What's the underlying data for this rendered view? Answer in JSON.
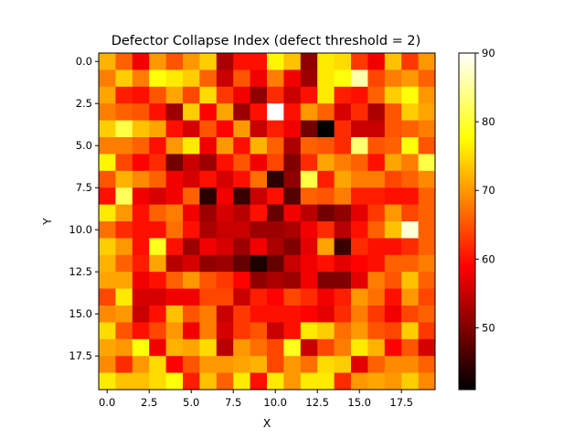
{
  "chart_data": {
    "type": "heatmap",
    "title": "Defector Collapse Index (defect threshold = 2)",
    "xlabel": "X",
    "ylabel": "Y",
    "colormap": "hot",
    "vmin": 41,
    "vmax": 90,
    "xlim": [
      -0.5,
      19.5
    ],
    "ylim": [
      19.5,
      -0.5
    ],
    "xticks": [
      0,
      2.5,
      5,
      7.5,
      10,
      12.5,
      15,
      17.5
    ],
    "xtick_labels": [
      "0.0",
      "2.5",
      "5.0",
      "7.5",
      "10.0",
      "12.5",
      "15.0",
      "17.5"
    ],
    "yticks": [
      0,
      2.5,
      5,
      7.5,
      10,
      12.5,
      15,
      17.5
    ],
    "ytick_labels": [
      "0.0",
      "2.5",
      "5.0",
      "7.5",
      "10.0",
      "12.5",
      "15.0",
      "17.5"
    ],
    "colorbar_ticks": [
      50,
      60,
      70,
      80,
      90
    ],
    "colorbar_labels": [
      "50",
      "60",
      "70",
      "80",
      "90"
    ],
    "grid": false,
    "values": [
      [
        72,
        66,
        58,
        70,
        65,
        70,
        74,
        53,
        60,
        60,
        77,
        73,
        51,
        76,
        75,
        63,
        58,
        73,
        63,
        70
      ],
      [
        68,
        74,
        68,
        78,
        76,
        74,
        66,
        55,
        65,
        58,
        68,
        58,
        52,
        76,
        78,
        86,
        64,
        68,
        70,
        66
      ],
      [
        71,
        61,
        60,
        65,
        71,
        64,
        75,
        63,
        58,
        51,
        62,
        55,
        60,
        76,
        61,
        60,
        66,
        74,
        78,
        70
      ],
      [
        68,
        66,
        65,
        60,
        52,
        74,
        59,
        71,
        52,
        60,
        90,
        60,
        70,
        66,
        56,
        62,
        53,
        65,
        74,
        71
      ],
      [
        74,
        81,
        73,
        71,
        60,
        56,
        65,
        59,
        70,
        55,
        61,
        58,
        49,
        41,
        62,
        55,
        55,
        65,
        66,
        68
      ],
      [
        68,
        68,
        66,
        60,
        70,
        76,
        58,
        70,
        60,
        72,
        66,
        53,
        66,
        65,
        62,
        83,
        65,
        66,
        78,
        65
      ],
      [
        77,
        64,
        59,
        62,
        49,
        55,
        52,
        60,
        65,
        58,
        64,
        50,
        62,
        71,
        68,
        66,
        60,
        71,
        68,
        81
      ],
      [
        65,
        72,
        69,
        66,
        58,
        56,
        60,
        56,
        60,
        67,
        44,
        51,
        81,
        61,
        71,
        68,
        68,
        64,
        66,
        69
      ],
      [
        60,
        82,
        58,
        56,
        58,
        66,
        44,
        58,
        45,
        55,
        60,
        47,
        66,
        65,
        68,
        61,
        61,
        60,
        60,
        66
      ],
      [
        76,
        70,
        60,
        66,
        68,
        58,
        52,
        56,
        54,
        60,
        48,
        58,
        54,
        49,
        51,
        57,
        63,
        70,
        64,
        66
      ],
      [
        67,
        62,
        60,
        60,
        67,
        60,
        53,
        55,
        55,
        52,
        52,
        53,
        58,
        62,
        54,
        60,
        66,
        73,
        88,
        66
      ],
      [
        74,
        70,
        60,
        79,
        60,
        52,
        58,
        56,
        52,
        58,
        53,
        50,
        57,
        71,
        45,
        62,
        60,
        60,
        62,
        66
      ],
      [
        72,
        66,
        61,
        71,
        54,
        56,
        51,
        52,
        48,
        43,
        48,
        55,
        58,
        60,
        57,
        59,
        60,
        66,
        66,
        68
      ],
      [
        71,
        71,
        58,
        60,
        66,
        70,
        65,
        63,
        59,
        51,
        53,
        52,
        58,
        50,
        50,
        57,
        68,
        65,
        73,
        66
      ],
      [
        64,
        76,
        56,
        56,
        58,
        58,
        64,
        64,
        55,
        61,
        59,
        64,
        62,
        58,
        61,
        70,
        67,
        60,
        70,
        64
      ],
      [
        69,
        70,
        55,
        60,
        73,
        65,
        68,
        55,
        63,
        60,
        60,
        60,
        59,
        57,
        62,
        68,
        63,
        58,
        64,
        66
      ],
      [
        75,
        65,
        60,
        64,
        70,
        58,
        68,
        56,
        63,
        65,
        55,
        60,
        76,
        74,
        67,
        70,
        65,
        64,
        74,
        63
      ],
      [
        71,
        70,
        78,
        58,
        72,
        71,
        75,
        54,
        70,
        67,
        64,
        79,
        55,
        64,
        68,
        76,
        72,
        59,
        65,
        56
      ],
      [
        69,
        62,
        70,
        75,
        59,
        65,
        70,
        70,
        71,
        72,
        64,
        70,
        67,
        75,
        74,
        57,
        66,
        69,
        69,
        66
      ],
      [
        76,
        73,
        73,
        75,
        78,
        61,
        73,
        66,
        76,
        60,
        76,
        70,
        76,
        76,
        62,
        70,
        71,
        70,
        74,
        69
      ]
    ]
  }
}
